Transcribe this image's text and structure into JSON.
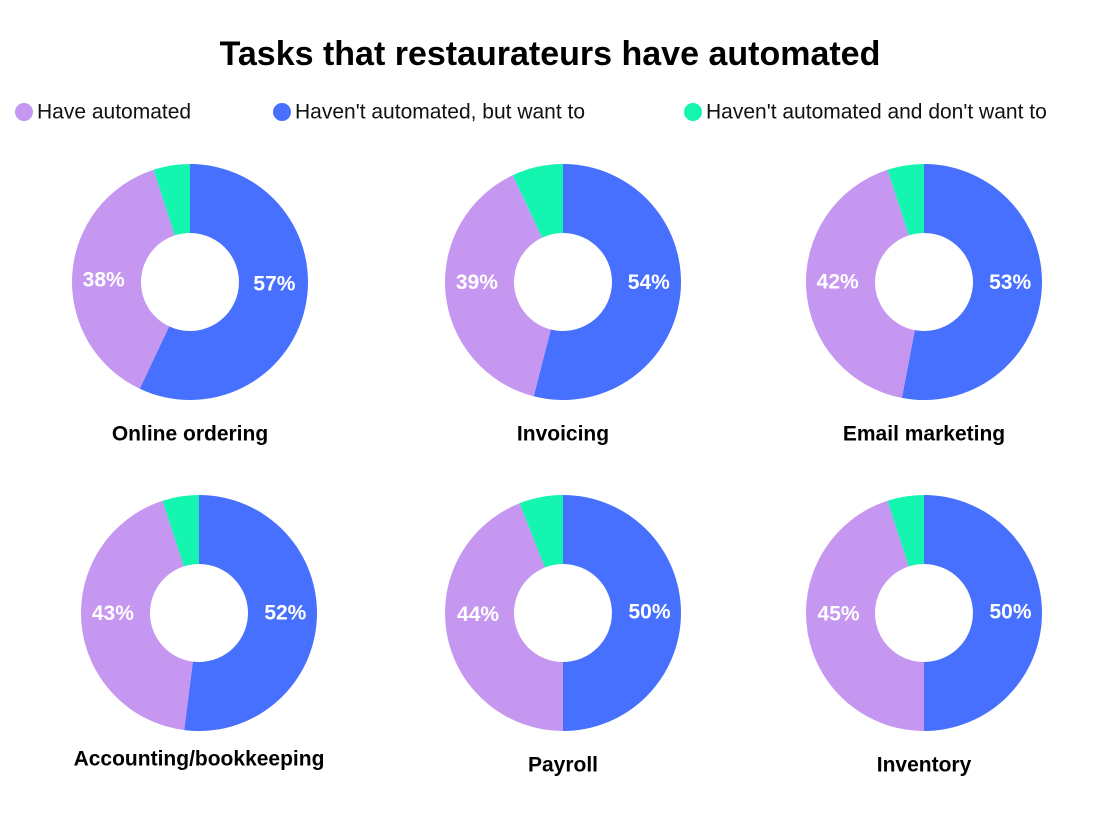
{
  "title": "Tasks that restaurateurs have automated",
  "legend": {
    "labels": [
      "Have automated",
      "Haven't automated, but want to",
      "Haven't automated and don't want to"
    ],
    "colors": [
      "#c597f0",
      "#4770ff",
      "#14f5b0"
    ]
  },
  "chart_data": [
    {
      "type": "pie",
      "title": "Online ordering",
      "values": [
        38,
        57,
        5
      ],
      "value_labels": [
        "38%",
        "57%",
        null
      ]
    },
    {
      "type": "pie",
      "title": "Invoicing",
      "values": [
        39,
        54,
        7
      ],
      "value_labels": [
        "39%",
        "54%",
        null
      ]
    },
    {
      "type": "pie",
      "title": "Email marketing",
      "values": [
        42,
        53,
        5
      ],
      "value_labels": [
        "42%",
        "53%",
        null
      ]
    },
    {
      "type": "pie",
      "title": "Accounting/bookkeeping",
      "values": [
        43,
        52,
        5
      ],
      "value_labels": [
        "43%",
        "52%",
        null
      ]
    },
    {
      "type": "pie",
      "title": "Payroll",
      "values": [
        44,
        50,
        6
      ],
      "value_labels": [
        "44%",
        "50%",
        null
      ]
    },
    {
      "type": "pie",
      "title": "Inventory",
      "values": [
        45,
        50,
        5
      ],
      "value_labels": [
        "45%",
        "50%",
        null
      ]
    }
  ]
}
